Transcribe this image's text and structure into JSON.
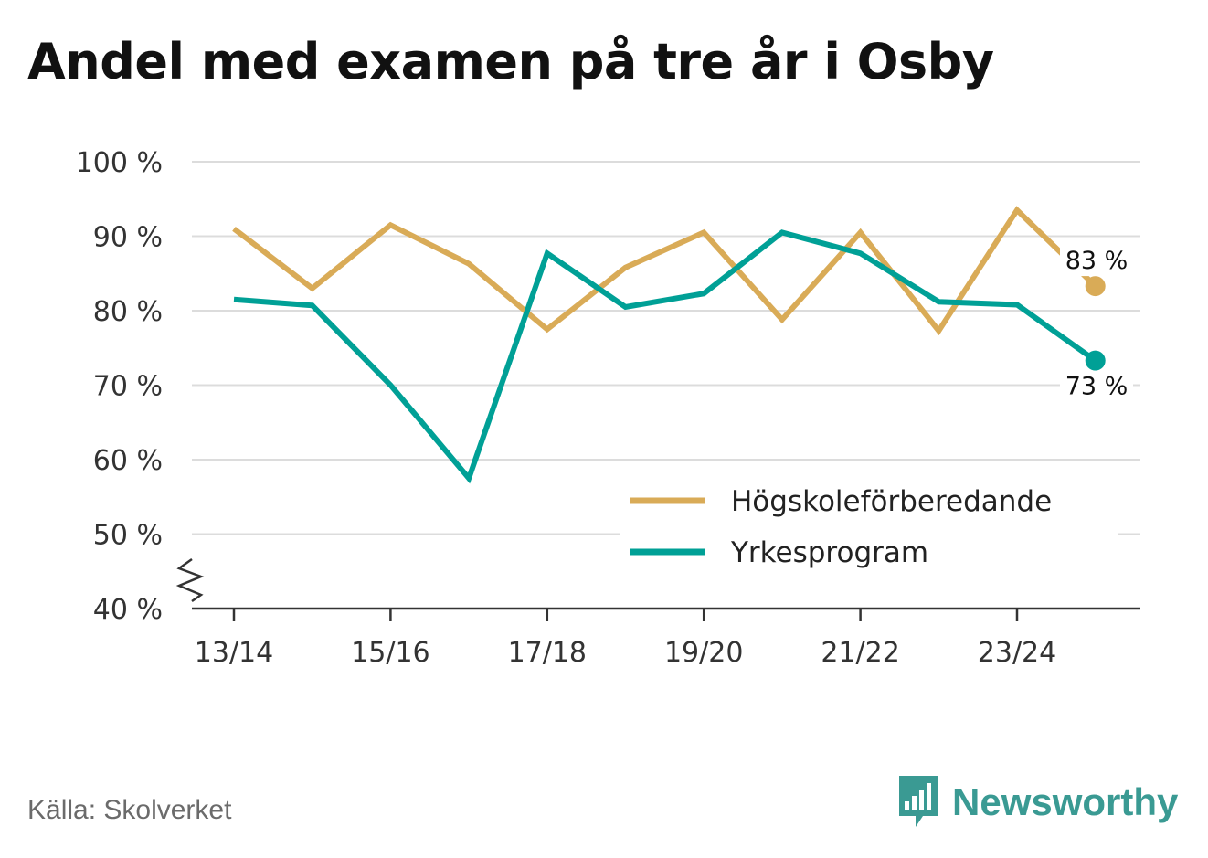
{
  "title": "Andel med examen på tre år i Osby",
  "source": "Källa: Skolverket",
  "brand": {
    "name": "Newsworthy",
    "icon": "newsworthy-logo-icon",
    "color": "#3a9a93"
  },
  "chart_data": {
    "type": "line",
    "title": "Andel med examen på tre år i Osby",
    "xlabel": "",
    "ylabel": "",
    "x": [
      "13/14",
      "14/15",
      "15/16",
      "16/17",
      "17/18",
      "18/19",
      "19/20",
      "20/21",
      "21/22",
      "22/23",
      "23/24",
      "24/25"
    ],
    "x_tick_labels": [
      "13/14",
      "15/16",
      "17/18",
      "19/20",
      "21/22",
      "23/24"
    ],
    "y_ticks": [
      40,
      50,
      60,
      70,
      80,
      90,
      100
    ],
    "y_tick_suffix": " %",
    "ylim": [
      40,
      100
    ],
    "y_axis_break": true,
    "grid": true,
    "legend_position": "bottom-right",
    "series": [
      {
        "name": "Högskoleförberedande",
        "color": "#d9ab57",
        "values": [
          91,
          83,
          91.5,
          86.3,
          77.5,
          85.8,
          90.5,
          78.8,
          90.5,
          77.3,
          93.5,
          83.3
        ],
        "end_label": "83 %"
      },
      {
        "name": "Yrkesprogram",
        "color": "#00a096",
        "values": [
          81.5,
          80.7,
          70,
          57.5,
          87.7,
          80.5,
          82.3,
          90.5,
          87.7,
          81.2,
          80.8,
          73.3
        ],
        "end_label": "73 %"
      }
    ]
  }
}
